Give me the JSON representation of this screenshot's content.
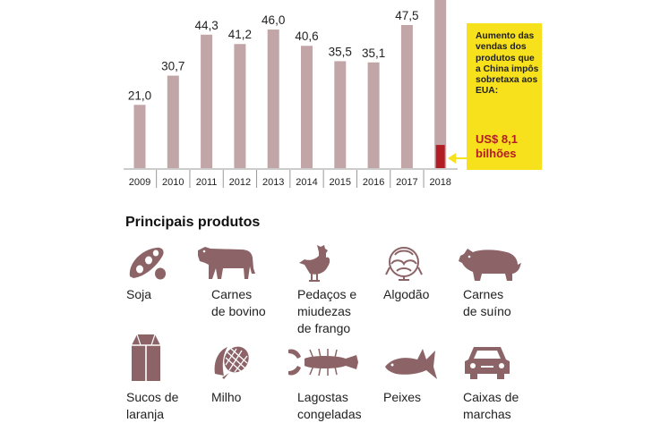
{
  "chart_data": {
    "type": "bar",
    "categories": [
      "2009",
      "2010",
      "2011",
      "2012",
      "2013",
      "2014",
      "2015",
      "2016",
      "2017",
      "2018"
    ],
    "values": [
      21.0,
      30.7,
      44.3,
      41.2,
      46.0,
      40.6,
      35.5,
      35.1,
      47.5,
      null
    ],
    "value_labels": [
      "21,0",
      "30,7",
      "44,3",
      "41,2",
      "46,0",
      "40,6",
      "35,5",
      "35,1",
      "47,5",
      ""
    ],
    "highlight": {
      "category": "2018",
      "value": 8.1
    },
    "ylim": [
      0,
      48
    ],
    "title": "",
    "xlabel": "",
    "ylabel": "",
    "colors": {
      "bar": "#c2a5a7",
      "highlight": "#b11d23",
      "axis": "#999999"
    }
  },
  "callout": {
    "text": "Aumento das vendas dos produtos que a China impôs sobretaxa aos EUA:",
    "value": "US$ 8,1 bilhões",
    "color": "#f7e01c"
  },
  "products": {
    "title": "Principais produtos",
    "icon_color": "#8c6467",
    "items": [
      {
        "label": "Soja",
        "icon": "soybean-icon"
      },
      {
        "label": "Carnes\nde bovino",
        "icon": "cow-icon"
      },
      {
        "label": "Pedaços e\nmiudezas\nde frango",
        "icon": "chicken-icon"
      },
      {
        "label": "Algodão",
        "icon": "cotton-icon"
      },
      {
        "label": "Carnes\nde suíno",
        "icon": "pig-icon"
      },
      {
        "label": "Sucos de\nlaranja",
        "icon": "juice-carton-icon"
      },
      {
        "label": "Milho",
        "icon": "corn-icon"
      },
      {
        "label": "Lagostas\ncongeladas",
        "icon": "lobster-icon"
      },
      {
        "label": "Peixes",
        "icon": "fish-icon"
      },
      {
        "label": "Caixas de\nmarchas",
        "icon": "car-icon"
      }
    ]
  }
}
